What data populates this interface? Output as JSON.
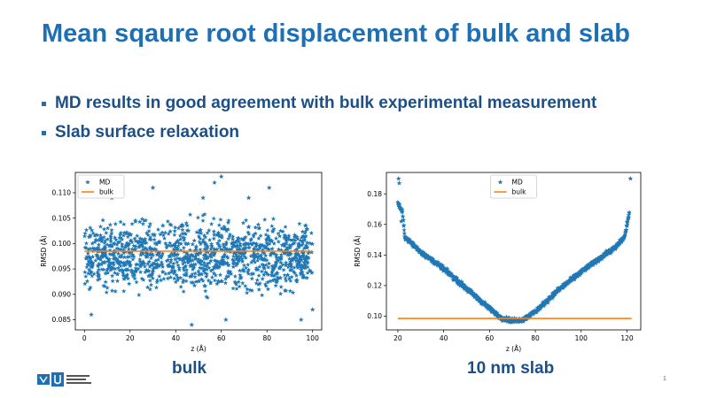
{
  "slide": {
    "title": "Mean sqaure root displacement of bulk and slab",
    "bullets": [
      "MD results in good agreement with bulk experimental measurement",
      "Slab surface relaxation"
    ],
    "page_number": "1"
  },
  "colors": {
    "title": "#1f6fb5",
    "text": "#1b4f86",
    "md": "#1f77b4",
    "bulk": "#ff7f0e"
  },
  "icons": {
    "logo": "university-logo"
  },
  "chart_data": [
    {
      "id": "bulk",
      "type": "scatter",
      "caption": "bulk",
      "xlabel": "z (Å)",
      "ylabel": "RMSD (Å)",
      "xlim": [
        -4,
        104
      ],
      "ylim": [
        0.083,
        0.114
      ],
      "xticks": [
        0,
        20,
        40,
        60,
        80,
        100
      ],
      "xtick_labels": [
        "0",
        "20",
        "40",
        "60",
        "80",
        "100"
      ],
      "yticks": [
        0.085,
        0.09,
        0.095,
        0.1,
        0.105,
        0.11
      ],
      "ytick_labels": [
        "0.085",
        "0.090",
        "0.095",
        "0.100",
        "0.105",
        "0.110"
      ],
      "legend": [
        "MD",
        "bulk"
      ],
      "legend_position": "upper-left",
      "series": [
        {
          "name": "MD",
          "kind": "markers",
          "x_range": [
            0,
            100
          ],
          "center": 0.0975,
          "band": [
            0.088,
            0.107
          ],
          "outliers": [
            [
              3,
              0.086
            ],
            [
              12,
              0.109
            ],
            [
              30,
              0.111
            ],
            [
              52,
              0.109
            ],
            [
              57,
              0.112
            ],
            [
              60,
              0.1132
            ],
            [
              72,
              0.109
            ],
            [
              81,
              0.111
            ],
            [
              95,
              0.085
            ],
            [
              100,
              0.087
            ],
            [
              47,
              0.084
            ],
            [
              62,
              0.085
            ]
          ]
        },
        {
          "name": "bulk",
          "kind": "line",
          "x": [
            0,
            100
          ],
          "y": [
            0.0985,
            0.0985
          ]
        }
      ]
    },
    {
      "id": "slab",
      "type": "scatter",
      "caption": "10 nm slab",
      "xlabel": "z (Å)",
      "ylabel": "RMSD (Å)",
      "xlim": [
        15,
        126
      ],
      "ylim": [
        0.091,
        0.194
      ],
      "xticks": [
        20,
        40,
        60,
        80,
        100,
        120
      ],
      "xtick_labels": [
        "20",
        "40",
        "60",
        "80",
        "100",
        "120"
      ],
      "yticks": [
        0.1,
        0.12,
        0.14,
        0.16,
        0.18
      ],
      "ytick_labels": [
        "0.10",
        "0.12",
        "0.14",
        "0.16",
        "0.18"
      ],
      "legend": [
        "MD",
        "bulk"
      ],
      "legend_position": "upper-center",
      "series": [
        {
          "name": "MD",
          "kind": "markers",
          "profile": [
            [
              20,
              0.174
            ],
            [
              22,
              0.168
            ],
            [
              23,
              0.152
            ],
            [
              30,
              0.142
            ],
            [
              40,
              0.131
            ],
            [
              50,
              0.118
            ],
            [
              60,
              0.105
            ],
            [
              65,
              0.099
            ],
            [
              70,
              0.097
            ],
            [
              75,
              0.098
            ],
            [
              80,
              0.103
            ],
            [
              90,
              0.117
            ],
            [
              100,
              0.129
            ],
            [
              110,
              0.14
            ],
            [
              115,
              0.145
            ],
            [
              119,
              0.152
            ],
            [
              121,
              0.168
            ]
          ],
          "outliers": [
            [
              20.3,
              0.19
            ],
            [
              20.6,
              0.187
            ],
            [
              21.5,
              0.162
            ],
            [
              121.5,
              0.19
            ]
          ]
        },
        {
          "name": "bulk",
          "kind": "line",
          "x": [
            20,
            122
          ],
          "y": [
            0.0985,
            0.0985
          ]
        }
      ]
    }
  ]
}
